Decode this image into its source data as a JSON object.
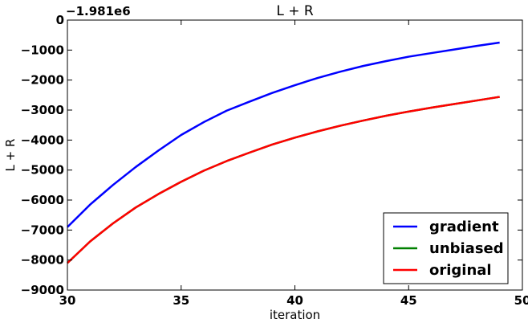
{
  "chart_data": {
    "type": "line",
    "title": "L + R",
    "xlabel": "iteration",
    "ylabel": "L + R",
    "y_offset_label": "−1.981e6",
    "xlim": [
      30,
      50
    ],
    "ylim": [
      -9000,
      0
    ],
    "x_ticks": [
      30,
      35,
      40,
      45,
      50
    ],
    "y_ticks": [
      0,
      -1000,
      -2000,
      -3000,
      -4000,
      -5000,
      -6000,
      -7000,
      -8000,
      -9000
    ],
    "x_tick_labels": [
      "30",
      "35",
      "40",
      "45",
      "50"
    ],
    "y_tick_labels": [
      "0",
      "−1000",
      "−2000",
      "−3000",
      "−4000",
      "−5000",
      "−6000",
      "−7000",
      "−8000",
      "−9000"
    ],
    "grid": false,
    "legend_position": "lower-right",
    "x": [
      30,
      31,
      32,
      33,
      34,
      35,
      36,
      37,
      38,
      39,
      40,
      41,
      42,
      43,
      44,
      45,
      46,
      47,
      48,
      49
    ],
    "series": [
      {
        "name": "gradient",
        "color": "#0000ff",
        "values": [
          -6900,
          -6150,
          -5500,
          -4900,
          -4350,
          -3830,
          -3400,
          -3020,
          -2720,
          -2430,
          -2170,
          -1930,
          -1720,
          -1530,
          -1370,
          -1220,
          -1100,
          -980,
          -860,
          -750
        ]
      },
      {
        "name": "unbiased",
        "color": "#008000",
        "values": [
          -8100,
          -7380,
          -6780,
          -6250,
          -5800,
          -5390,
          -5020,
          -4700,
          -4420,
          -4150,
          -3920,
          -3710,
          -3520,
          -3350,
          -3190,
          -3050,
          -2920,
          -2800,
          -2680,
          -2560
        ]
      },
      {
        "name": "original",
        "color": "#ff0000",
        "values": [
          -8100,
          -7380,
          -6780,
          -6250,
          -5800,
          -5390,
          -5020,
          -4700,
          -4420,
          -4150,
          -3920,
          -3710,
          -3520,
          -3350,
          -3190,
          -3050,
          -2920,
          -2800,
          -2680,
          -2560
        ]
      }
    ]
  }
}
